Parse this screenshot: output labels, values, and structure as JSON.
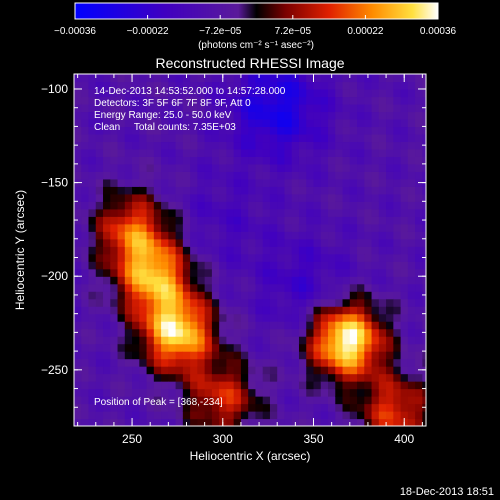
{
  "chart_data": {
    "type": "heatmap",
    "title": "Reconstructed RHESSI Image",
    "xlabel": "Heliocentric X (arcsec)",
    "ylabel": "Heliocentric Y (arcsec)",
    "xlim": [
      218,
      412
    ],
    "ylim": [
      -280,
      -92
    ],
    "x_ticks": [
      250,
      300,
      350,
      400
    ],
    "y_ticks": [
      -100,
      -150,
      -200,
      -250
    ],
    "colorbar": {
      "unit_label": "(photons cm⁻² s⁻¹ asec⁻²)",
      "range": [
        -0.00036,
        0.00036
      ],
      "tick_labels": [
        "-0.00036",
        "-0.00022",
        "-7.2e-05",
        "7.2e-05",
        "0.00022",
        "0.00036"
      ]
    },
    "annotations": {
      "time_range": "14-Dec-2013 14:53:52.000 to 14:57:28.000",
      "detectors": "Detectors: 3F 5F 6F 7F 8F 9F, Att 0",
      "energy_range": "Energy Range: 25.0 - 50.0 keV",
      "method_counts": "Clean     Total counts: 7.35E+03",
      "peak": "Position of Peak = [368,-234]"
    },
    "sources": [
      {
        "x": 368,
        "y": -234,
        "intensity": 0.00036
      },
      {
        "x": 275,
        "y": -230,
        "intensity": 0.0003
      },
      {
        "x": 262,
        "y": -200,
        "intensity": 0.00024
      },
      {
        "x": 250,
        "y": -175,
        "intensity": 0.00016
      },
      {
        "x": 395,
        "y": -272,
        "intensity": 0.00014
      },
      {
        "x": 300,
        "y": -265,
        "intensity": 0.00012
      }
    ],
    "minima": [
      {
        "x": 330,
        "y": -110,
        "intensity": -0.0003
      },
      {
        "x": 345,
        "y": -205,
        "intensity": -0.0002
      },
      {
        "x": 300,
        "y": -170,
        "intensity": -0.00016
      }
    ]
  },
  "footer": {
    "timestamp": "18-Dec-2013 18:51"
  },
  "colors": {
    "background": "#000000",
    "foreground": "#ffffff"
  }
}
